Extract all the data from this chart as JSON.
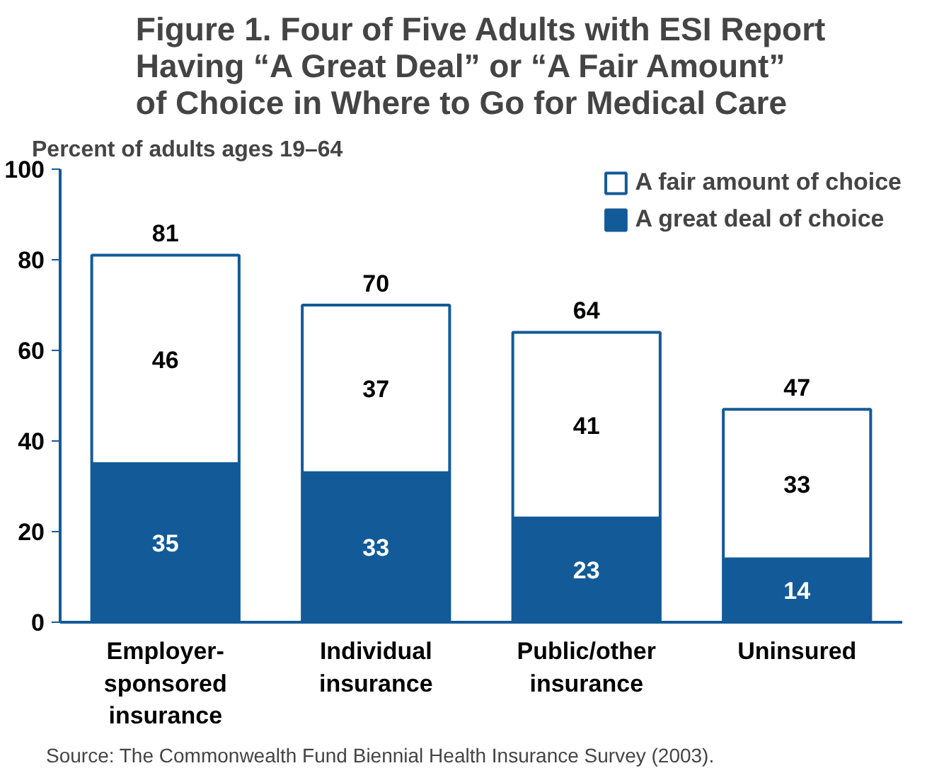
{
  "chart_data": {
    "type": "bar",
    "stacked": true,
    "title": "Figure 1. Four of Five Adults with ESI Report\nHaving “A Great Deal” or “A Fair Amount”\nof Choice in Where to Go for Medical Care",
    "ylabel": "Percent of adults ages 19–64",
    "categories": [
      "Employer-\nsponsored\ninsurance",
      "Individual\ninsurance",
      "Public/other\ninsurance",
      "Uninsured"
    ],
    "series": [
      {
        "name": "A great deal of choice",
        "color": "#135a98",
        "values": [
          35,
          33,
          23,
          14
        ]
      },
      {
        "name": "A fair amount of choice",
        "color": "#ffffff",
        "values": [
          46,
          37,
          41,
          33
        ]
      }
    ],
    "data_labels": true,
    "totals": [
      "81",
      "70",
      "64",
      "47"
    ],
    "ylim": [
      0,
      100
    ],
    "yticks": [
      0,
      20,
      40,
      60,
      80,
      100
    ],
    "grid": false,
    "legend": "top right",
    "annotations": [
      "Source: The Commonwealth Fund Biennial Health Insurance Survey (2003)."
    ]
  }
}
